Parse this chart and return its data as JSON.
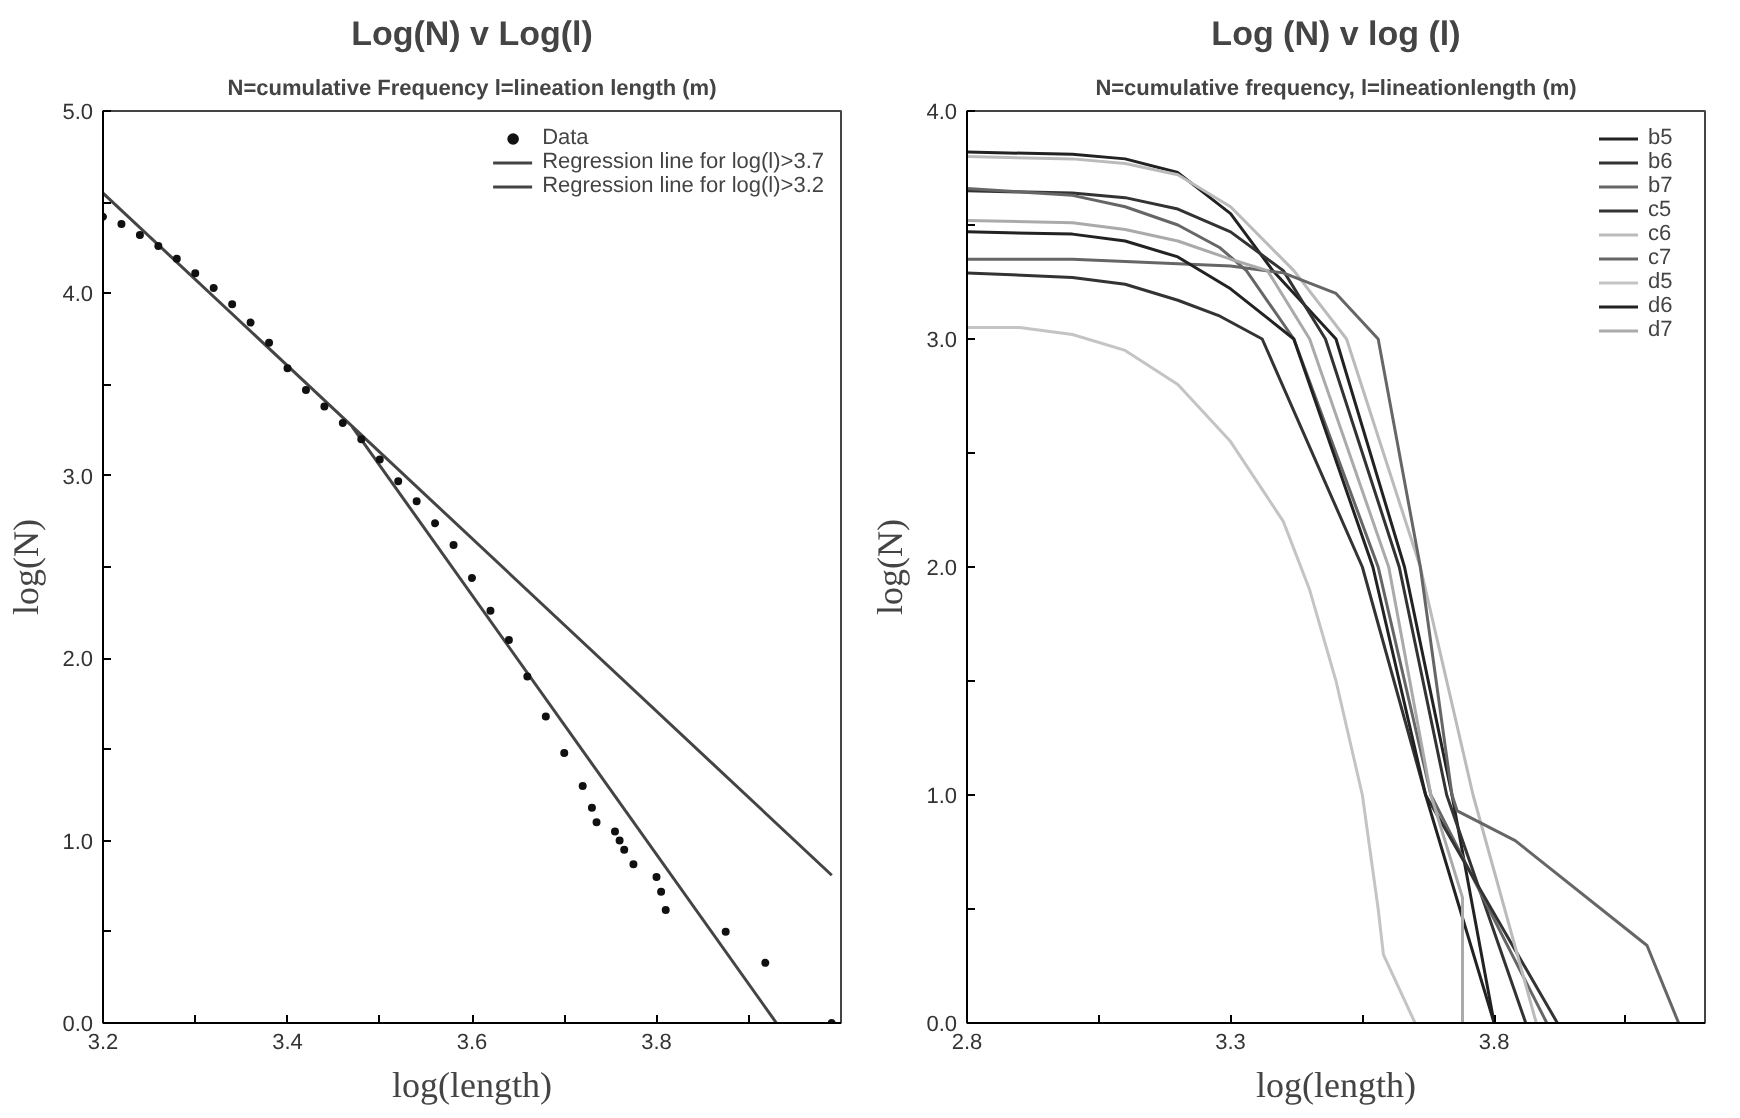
{
  "chart_data": [
    {
      "type": "scatter",
      "title": "Log(N) v Log(l)",
      "subtitle": "N=cumulative Frequency l=lineation length (m)",
      "xlabel": "log(length)",
      "ylabel": "log(N)",
      "xlim": [
        3.2,
        4.0
      ],
      "ylim": [
        0,
        5
      ],
      "xticks": [
        3.2,
        {
          "value": 3.3,
          "label": null
        },
        3.4,
        {
          "value": 3.5,
          "label": null
        },
        3.6,
        {
          "value": 3.7,
          "label": null
        },
        3.8,
        {
          "value": 3.9,
          "label": null
        }
      ],
      "yticks": [
        {
          "value": 0,
          "label": "0.0"
        },
        {
          "value": 0.5,
          "label": null
        },
        {
          "value": 1,
          "label": "1.0"
        },
        {
          "value": 1.5,
          "label": null
        },
        {
          "value": 2,
          "label": "2.0"
        },
        {
          "value": 2.5,
          "label": null
        },
        {
          "value": 3,
          "label": "3.0"
        },
        {
          "value": 3.5,
          "label": null
        },
        {
          "value": 4,
          "label": "4.0"
        },
        {
          "value": 4.5,
          "label": null
        },
        {
          "value": 5,
          "label": "5.0"
        }
      ],
      "grid": false,
      "legend": "top right",
      "series": [
        {
          "name": "Data",
          "type": "scatter",
          "marker": "circle",
          "color": "#111111",
          "x": [
            3.2,
            3.22,
            3.24,
            3.26,
            3.28,
            3.3,
            3.32,
            3.34,
            3.36,
            3.38,
            3.4,
            3.42,
            3.44,
            3.46,
            3.48,
            3.5,
            3.52,
            3.54,
            3.56,
            3.58,
            3.6,
            3.62,
            3.64,
            3.66,
            3.68,
            3.7,
            3.72,
            3.73,
            3.735,
            3.755,
            3.76,
            3.765,
            3.775,
            3.8,
            3.805,
            3.81,
            3.875,
            3.918,
            3.99
          ],
          "values": [
            4.42,
            4.38,
            4.32,
            4.26,
            4.19,
            4.11,
            4.03,
            3.94,
            3.84,
            3.73,
            3.59,
            3.47,
            3.38,
            3.29,
            3.2,
            3.09,
            2.97,
            2.86,
            2.74,
            2.62,
            2.44,
            2.26,
            2.1,
            1.9,
            1.68,
            1.48,
            1.3,
            1.18,
            1.1,
            1.05,
            1.0,
            0.95,
            0.87,
            0.8,
            0.72,
            0.62,
            0.5,
            0.33,
            0.0
          ]
        },
        {
          "name": "Regression line for log(l)>3.7",
          "type": "line",
          "color": "#444444",
          "x": [
            3.2,
            3.99
          ],
          "values": [
            4.55,
            0.81
          ]
        },
        {
          "name": "Regression line for log(l)>3.2",
          "type": "line",
          "color": "#444444",
          "x": [
            3.47,
            3.93
          ],
          "values": [
            3.27,
            0.0
          ]
        }
      ]
    },
    {
      "type": "line",
      "title": "Log (N) v log (l)",
      "subtitle": "N=cumulative frequency, l=lineationlength (m)",
      "xlabel": "log(length)",
      "ylabel": "log(N)",
      "xlim": [
        2.8,
        4.2
      ],
      "ylim": [
        0,
        4
      ],
      "xticks": [
        2.8,
        {
          "value": 3.05,
          "label": null
        },
        3.3,
        {
          "value": 3.55,
          "label": null
        },
        3.8,
        {
          "value": 4.05,
          "label": null
        }
      ],
      "yticks": [
        {
          "value": 0,
          "label": "0.0"
        },
        {
          "value": 0.5,
          "label": null
        },
        {
          "value": 1,
          "label": "1.0"
        },
        {
          "value": 1.5,
          "label": null
        },
        {
          "value": 2,
          "label": "2.0"
        },
        {
          "value": 2.5,
          "label": null
        },
        {
          "value": 3,
          "label": "3.0"
        },
        {
          "value": 3.5,
          "label": null
        },
        {
          "value": 4,
          "label": "4.0"
        }
      ],
      "grid": false,
      "legend": "top right",
      "series": [
        {
          "name": "b5",
          "color": "#222222",
          "x": [
            2.8,
            3.0,
            3.1,
            3.2,
            3.3,
            3.38,
            3.5,
            3.63,
            3.72,
            3.8
          ],
          "values": [
            3.82,
            3.81,
            3.79,
            3.73,
            3.55,
            3.3,
            3.0,
            2.0,
            1.0,
            0.0
          ]
        },
        {
          "name": "b6",
          "color": "#333333",
          "x": [
            2.8,
            3.0,
            3.1,
            3.2,
            3.3,
            3.4,
            3.48,
            3.62,
            3.71,
            3.86
          ],
          "values": [
            3.65,
            3.64,
            3.62,
            3.57,
            3.47,
            3.3,
            3.0,
            2.0,
            1.0,
            0.0
          ]
        },
        {
          "name": "b7",
          "color": "#666666",
          "x": [
            2.8,
            3.0,
            3.1,
            3.2,
            3.28,
            3.33,
            3.42,
            3.58,
            3.68,
            3.9
          ],
          "values": [
            3.66,
            3.63,
            3.58,
            3.5,
            3.4,
            3.3,
            3.0,
            2.0,
            1.0,
            0.0
          ]
        },
        {
          "name": "c5",
          "color": "#333333",
          "x": [
            2.8,
            3.0,
            3.1,
            3.2,
            3.28,
            3.36,
            3.55,
            3.67,
            3.92
          ],
          "values": [
            3.29,
            3.27,
            3.24,
            3.17,
            3.1,
            3.0,
            2.0,
            1.0,
            0.0
          ]
        },
        {
          "name": "c6",
          "color": "#bbbbbb",
          "x": [
            2.8,
            3.0,
            3.1,
            3.2,
            3.3,
            3.42,
            3.52,
            3.66,
            3.76,
            3.88
          ],
          "values": [
            3.8,
            3.79,
            3.77,
            3.72,
            3.58,
            3.3,
            3.0,
            2.0,
            1.0,
            0.0
          ]
        },
        {
          "name": "c7",
          "color": "#666666",
          "x": [
            2.8,
            3.0,
            3.2,
            3.3,
            3.4,
            3.5,
            3.58,
            3.66,
            3.72,
            3.73,
            3.84,
            4.09,
            4.15
          ],
          "values": [
            3.35,
            3.35,
            3.33,
            3.32,
            3.29,
            3.2,
            3.0,
            2.0,
            1.0,
            0.93,
            0.8,
            0.34,
            0.0
          ]
        },
        {
          "name": "d5",
          "color": "#c4c4c4",
          "x": [
            2.8,
            2.9,
            3.0,
            3.1,
            3.2,
            3.3,
            3.4,
            3.45,
            3.5,
            3.55,
            3.58,
            3.59,
            3.65
          ],
          "values": [
            3.05,
            3.05,
            3.02,
            2.95,
            2.8,
            2.55,
            2.2,
            1.9,
            1.5,
            1.0,
            0.5,
            0.3,
            0.0
          ]
        },
        {
          "name": "d6",
          "color": "#222222",
          "x": [
            2.8,
            3.0,
            3.1,
            3.2,
            3.3,
            3.42,
            3.57,
            3.67,
            3.8
          ],
          "values": [
            3.47,
            3.46,
            3.43,
            3.36,
            3.22,
            3.0,
            2.0,
            1.0,
            0.0
          ]
        },
        {
          "name": "d7",
          "color": "#aaaaaa",
          "x": [
            2.8,
            3.0,
            3.1,
            3.2,
            3.3,
            3.37,
            3.45,
            3.6,
            3.68,
            3.74,
            3.74
          ],
          "values": [
            3.52,
            3.51,
            3.48,
            3.43,
            3.35,
            3.3,
            3.0,
            2.0,
            1.0,
            0.55,
            0.0
          ]
        }
      ]
    }
  ]
}
